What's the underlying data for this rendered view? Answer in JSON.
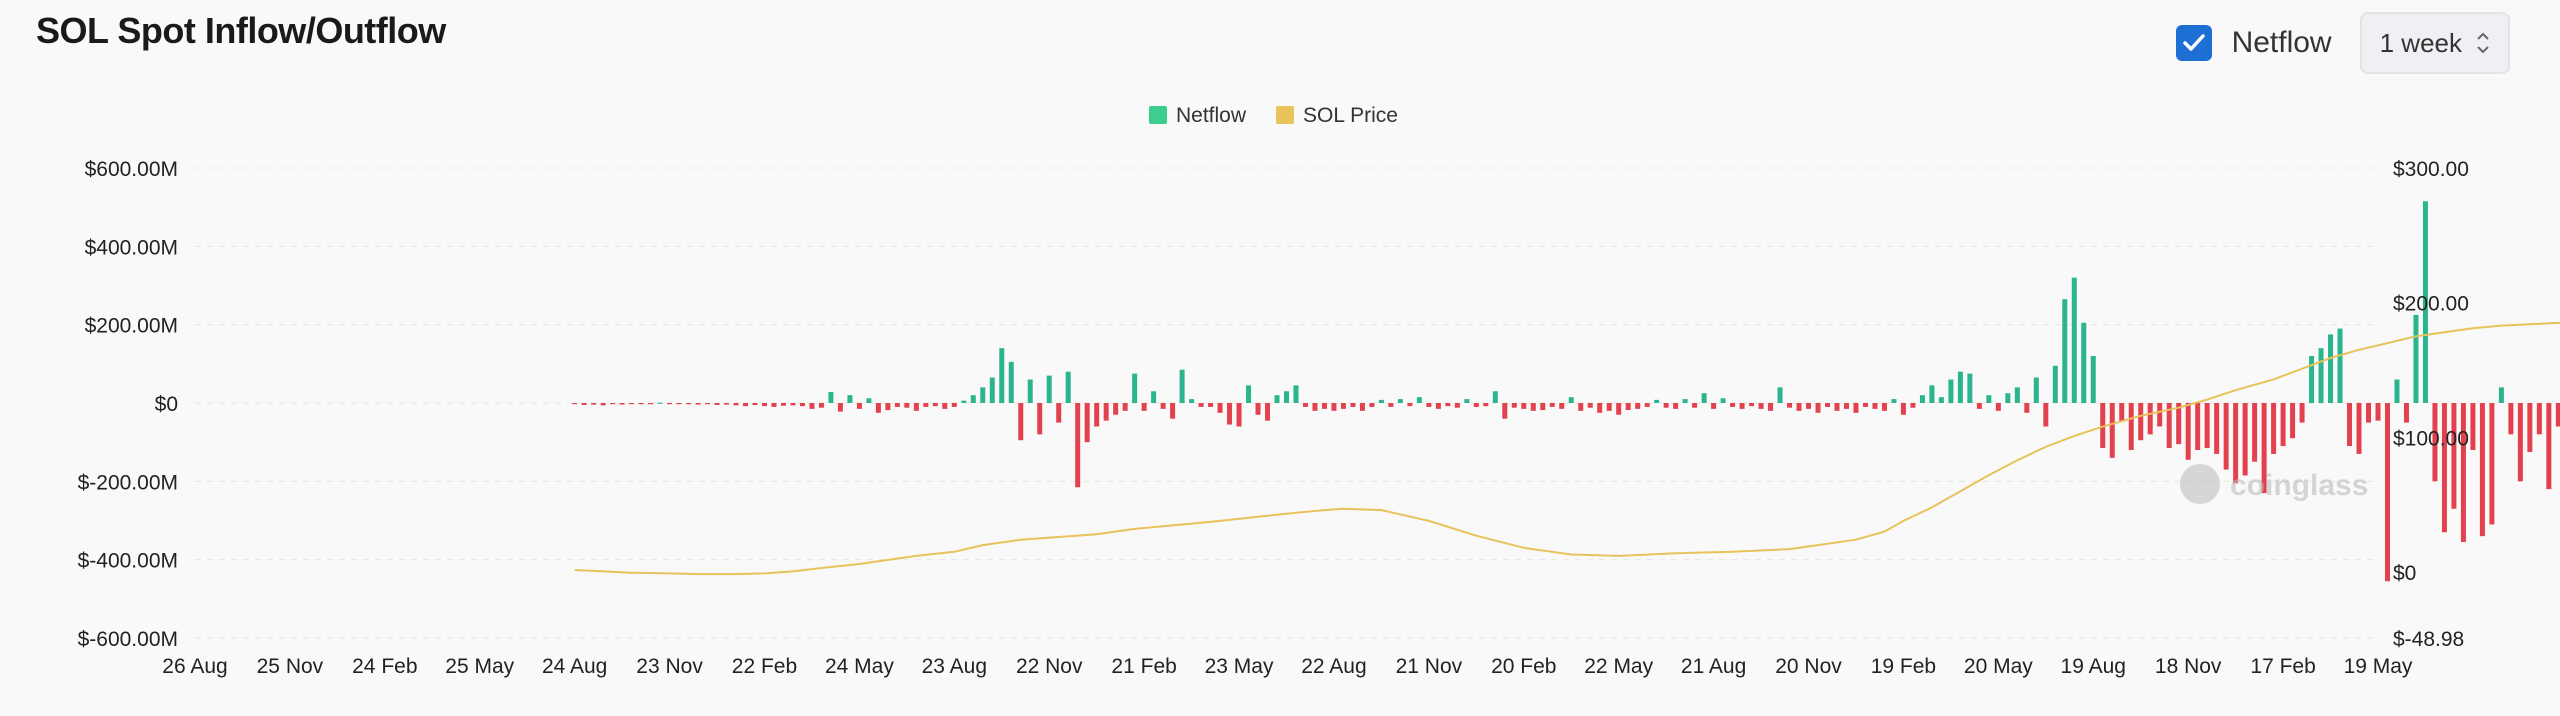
{
  "header": {
    "title": "SOL Spot Inflow/Outflow",
    "checkbox_checked": true,
    "netflow_label": "Netflow",
    "period_value": "1 week"
  },
  "colors": {
    "positive": "#2bb58f",
    "negative": "#e2414d",
    "price": "#e8c25a",
    "checkbox": "#1d6fd4",
    "legend_netflow": "#3dcd8c"
  },
  "icons": {
    "checkbox": "check-icon",
    "select": "chevron-updown-icon",
    "watermark": "coinglass-logo-icon"
  },
  "watermark": "coinglass",
  "chart_data": {
    "type": "bar",
    "legend": [
      "Netflow",
      "SOL Price"
    ],
    "legend_position": "top-center",
    "grid": true,
    "x_ticks": [
      "26 Aug",
      "25 Nov",
      "24 Feb",
      "25 May",
      "24 Aug",
      "23 Nov",
      "22 Feb",
      "24 May",
      "23 Aug",
      "22 Nov",
      "21 Feb",
      "23 May",
      "22 Aug",
      "21 Nov",
      "20 Feb",
      "22 May",
      "21 Aug",
      "20 Nov",
      "19 Feb",
      "20 May",
      "19 Aug",
      "18 Nov",
      "17 Feb",
      "19 May"
    ],
    "y_left": {
      "ticks": [
        "$600.00M",
        "$400.00M",
        "$200.00M",
        "$0",
        "$-200.00M",
        "$-400.00M",
        "$-600.00M"
      ],
      "ylim": [
        -600,
        600
      ],
      "unit": "M USD"
    },
    "y_right": {
      "ticks": [
        "$300.00",
        "$200.00",
        "$100.00",
        "$0",
        "$-48.98"
      ],
      "ylim": [
        -48.98,
        300
      ],
      "unit": "USD"
    },
    "series": [
      {
        "name": "Netflow",
        "kind": "bar",
        "points": [
          [
            4.0,
            -2
          ],
          [
            4.1,
            -5
          ],
          [
            4.2,
            -4
          ],
          [
            4.3,
            -6
          ],
          [
            4.4,
            -3
          ],
          [
            4.5,
            -4
          ],
          [
            4.6,
            -2
          ],
          [
            4.7,
            -3
          ],
          [
            4.8,
            -1
          ],
          [
            4.9,
            1
          ],
          [
            5.0,
            -2
          ],
          [
            5.1,
            -3
          ],
          [
            5.2,
            -2
          ],
          [
            5.3,
            -4
          ],
          [
            5.4,
            -3
          ],
          [
            5.5,
            -5
          ],
          [
            5.6,
            -4
          ],
          [
            5.7,
            -6
          ],
          [
            5.8,
            -8
          ],
          [
            5.9,
            -5
          ],
          [
            6.0,
            -8
          ],
          [
            6.1,
            -10
          ],
          [
            6.2,
            -7
          ],
          [
            6.3,
            -6
          ],
          [
            6.4,
            -8
          ],
          [
            6.5,
            -15
          ],
          [
            6.6,
            -12
          ],
          [
            6.7,
            28
          ],
          [
            6.8,
            -22
          ],
          [
            6.9,
            20
          ],
          [
            7.0,
            -15
          ],
          [
            7.1,
            12
          ],
          [
            7.2,
            -25
          ],
          [
            7.3,
            -18
          ],
          [
            7.4,
            -10
          ],
          [
            7.5,
            -12
          ],
          [
            7.6,
            -20
          ],
          [
            7.7,
            -10
          ],
          [
            7.8,
            -8
          ],
          [
            7.9,
            -15
          ],
          [
            8.0,
            -10
          ],
          [
            8.1,
            6
          ],
          [
            8.2,
            20
          ],
          [
            8.3,
            40
          ],
          [
            8.4,
            65
          ],
          [
            8.5,
            140
          ],
          [
            8.6,
            105
          ],
          [
            8.7,
            -95
          ],
          [
            8.8,
            60
          ],
          [
            8.9,
            -80
          ],
          [
            9.0,
            70
          ],
          [
            9.1,
            -50
          ],
          [
            9.2,
            80
          ],
          [
            9.3,
            -215
          ],
          [
            9.4,
            -100
          ],
          [
            9.5,
            -60
          ],
          [
            9.6,
            -45
          ],
          [
            9.7,
            -30
          ],
          [
            9.8,
            -20
          ],
          [
            9.9,
            75
          ],
          [
            10.0,
            -20
          ],
          [
            10.1,
            30
          ],
          [
            10.2,
            -15
          ],
          [
            10.3,
            -40
          ],
          [
            10.4,
            85
          ],
          [
            10.5,
            10
          ],
          [
            10.6,
            -10
          ],
          [
            10.7,
            -10
          ],
          [
            10.8,
            -25
          ],
          [
            10.9,
            -55
          ],
          [
            11.0,
            -60
          ],
          [
            11.1,
            45
          ],
          [
            11.2,
            -30
          ],
          [
            11.3,
            -45
          ],
          [
            11.4,
            20
          ],
          [
            11.5,
            30
          ],
          [
            11.6,
            45
          ],
          [
            11.7,
            -10
          ],
          [
            11.8,
            -20
          ],
          [
            11.9,
            -15
          ],
          [
            12.0,
            -20
          ],
          [
            12.1,
            -15
          ],
          [
            12.2,
            -10
          ],
          [
            12.3,
            -20
          ],
          [
            12.4,
            -10
          ],
          [
            12.5,
            8
          ],
          [
            12.6,
            -10
          ],
          [
            12.7,
            10
          ],
          [
            12.8,
            -8
          ],
          [
            12.9,
            15
          ],
          [
            13.0,
            -10
          ],
          [
            13.1,
            -15
          ],
          [
            13.2,
            -8
          ],
          [
            13.3,
            -12
          ],
          [
            13.4,
            10
          ],
          [
            13.5,
            -10
          ],
          [
            13.6,
            -8
          ],
          [
            13.7,
            30
          ],
          [
            13.8,
            -40
          ],
          [
            13.9,
            -12
          ],
          [
            14.0,
            -15
          ],
          [
            14.1,
            -20
          ],
          [
            14.2,
            -18
          ],
          [
            14.3,
            -10
          ],
          [
            14.4,
            -15
          ],
          [
            14.5,
            15
          ],
          [
            14.6,
            -20
          ],
          [
            14.7,
            -12
          ],
          [
            14.8,
            -25
          ],
          [
            14.9,
            -20
          ],
          [
            15.0,
            -30
          ],
          [
            15.1,
            -18
          ],
          [
            15.2,
            -15
          ],
          [
            15.3,
            -10
          ],
          [
            15.4,
            8
          ],
          [
            15.5,
            -12
          ],
          [
            15.6,
            -15
          ],
          [
            15.7,
            10
          ],
          [
            15.8,
            -12
          ],
          [
            15.9,
            25
          ],
          [
            16.0,
            -15
          ],
          [
            16.1,
            12
          ],
          [
            16.2,
            -10
          ],
          [
            16.3,
            -15
          ],
          [
            16.4,
            -8
          ],
          [
            16.5,
            -15
          ],
          [
            16.6,
            -20
          ],
          [
            16.7,
            40
          ],
          [
            16.8,
            -12
          ],
          [
            16.9,
            -20
          ],
          [
            17.0,
            -15
          ],
          [
            17.1,
            -25
          ],
          [
            17.2,
            -10
          ],
          [
            17.3,
            -20
          ],
          [
            17.4,
            -15
          ],
          [
            17.5,
            -25
          ],
          [
            17.6,
            -10
          ],
          [
            17.7,
            -15
          ],
          [
            17.8,
            -20
          ],
          [
            17.9,
            10
          ],
          [
            18.0,
            -30
          ],
          [
            18.1,
            -12
          ],
          [
            18.2,
            20
          ],
          [
            18.3,
            45
          ],
          [
            18.4,
            15
          ],
          [
            18.5,
            60
          ],
          [
            18.6,
            80
          ],
          [
            18.7,
            75
          ],
          [
            18.8,
            -15
          ],
          [
            18.9,
            20
          ],
          [
            19.0,
            -20
          ],
          [
            19.1,
            25
          ],
          [
            19.2,
            40
          ],
          [
            19.3,
            -25
          ],
          [
            19.4,
            65
          ],
          [
            19.5,
            -60
          ],
          [
            19.6,
            95
          ],
          [
            19.7,
            265
          ],
          [
            19.8,
            320
          ],
          [
            19.9,
            205
          ],
          [
            20.0,
            120
          ],
          [
            20.1,
            -115
          ],
          [
            20.2,
            -140
          ],
          [
            20.3,
            -45
          ],
          [
            20.4,
            -120
          ],
          [
            20.5,
            -95
          ],
          [
            20.6,
            -80
          ],
          [
            20.7,
            -60
          ],
          [
            20.8,
            -115
          ],
          [
            20.9,
            -105
          ],
          [
            21.0,
            -145
          ],
          [
            21.1,
            -120
          ],
          [
            21.2,
            -115
          ],
          [
            21.3,
            -130
          ],
          [
            21.4,
            -170
          ],
          [
            21.5,
            -205
          ],
          [
            21.6,
            -185
          ],
          [
            21.7,
            -150
          ],
          [
            21.8,
            -230
          ],
          [
            21.9,
            -130
          ],
          [
            22.0,
            -110
          ],
          [
            22.1,
            -90
          ],
          [
            22.2,
            -50
          ],
          [
            22.3,
            120
          ],
          [
            22.4,
            140
          ],
          [
            22.5,
            175
          ],
          [
            22.6,
            190
          ],
          [
            22.7,
            -110
          ],
          [
            22.8,
            -130
          ],
          [
            22.9,
            -50
          ],
          [
            23.0,
            -45
          ],
          [
            23.1,
            -455
          ],
          [
            23.2,
            60
          ],
          [
            23.3,
            -50
          ],
          [
            23.4,
            225
          ],
          [
            23.5,
            515
          ],
          [
            23.6,
            -200
          ],
          [
            23.7,
            -330
          ],
          [
            23.8,
            -270
          ],
          [
            23.9,
            -355
          ],
          [
            24.0,
            -120
          ],
          [
            24.1,
            -340
          ],
          [
            24.2,
            -310
          ],
          [
            24.3,
            40
          ],
          [
            24.4,
            -80
          ],
          [
            24.5,
            -200
          ],
          [
            24.6,
            -125
          ],
          [
            24.7,
            -80
          ],
          [
            24.8,
            -220
          ],
          [
            24.9,
            -60
          ],
          [
            25.0,
            -70
          ],
          [
            25.1,
            -15
          ],
          [
            25.2,
            50
          ],
          [
            25.3,
            -20
          ],
          [
            25.4,
            -60
          ],
          [
            25.5,
            20
          ],
          [
            25.6,
            -50
          ],
          [
            25.7,
            120
          ],
          [
            25.8,
            -110
          ],
          [
            25.9,
            -15
          ]
        ]
      },
      {
        "name": "SOL Price",
        "kind": "line",
        "points": [
          [
            4.0,
            1.5
          ],
          [
            4.3,
            0.5
          ],
          [
            4.6,
            -0.5
          ],
          [
            5.0,
            -1
          ],
          [
            5.3,
            -1.5
          ],
          [
            5.7,
            -1.5
          ],
          [
            6.0,
            -1
          ],
          [
            6.3,
            0.5
          ],
          [
            6.6,
            3
          ],
          [
            7.0,
            6
          ],
          [
            7.3,
            9
          ],
          [
            7.6,
            12
          ],
          [
            8.0,
            15
          ],
          [
            8.3,
            20
          ],
          [
            8.7,
            24
          ],
          [
            9.1,
            26
          ],
          [
            9.5,
            28
          ],
          [
            9.9,
            32
          ],
          [
            10.2,
            34
          ],
          [
            10.5,
            36
          ],
          [
            10.8,
            38
          ],
          [
            11.2,
            41
          ],
          [
            11.6,
            44
          ],
          [
            11.9,
            46
          ],
          [
            12.1,
            47
          ],
          [
            12.5,
            46
          ],
          [
            13.0,
            38
          ],
          [
            13.5,
            27
          ],
          [
            14.0,
            18
          ],
          [
            14.5,
            13
          ],
          [
            15.0,
            12
          ],
          [
            15.6,
            14
          ],
          [
            16.2,
            15
          ],
          [
            16.8,
            17
          ],
          [
            17.2,
            21
          ],
          [
            17.5,
            24
          ],
          [
            17.8,
            30
          ],
          [
            18.0,
            38
          ],
          [
            18.3,
            48
          ],
          [
            18.6,
            60
          ],
          [
            18.9,
            72
          ],
          [
            19.2,
            83
          ],
          [
            19.5,
            93
          ],
          [
            19.8,
            101
          ],
          [
            20.1,
            108
          ],
          [
            20.5,
            116
          ],
          [
            20.9,
            122
          ],
          [
            21.2,
            128
          ],
          [
            21.5,
            135
          ],
          [
            21.9,
            143
          ],
          [
            22.2,
            151
          ],
          [
            22.5,
            159
          ],
          [
            22.8,
            165
          ],
          [
            23.1,
            170
          ],
          [
            23.4,
            175
          ],
          [
            23.7,
            178
          ],
          [
            24.0,
            181
          ],
          [
            24.3,
            183
          ],
          [
            24.6,
            184
          ],
          [
            24.9,
            185
          ],
          [
            25.2,
            186
          ],
          [
            25.5,
            187
          ],
          [
            25.8,
            188
          ],
          [
            26.0,
            188
          ]
        ]
      }
    ]
  }
}
